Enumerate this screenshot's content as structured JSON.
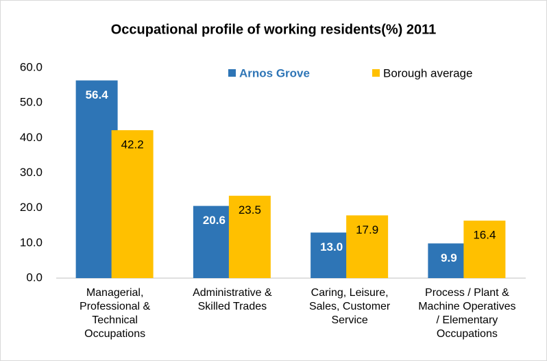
{
  "chart_data": {
    "type": "bar",
    "title": "Occupational profile of working residents(%) 2011",
    "categories": [
      "Managerial, Professional & Technical Occupations",
      "Administrative & Skilled Trades",
      "Caring, Leisure, Sales, Customer Service",
      "Process / Plant & Machine Operatives / Elementary Occupations"
    ],
    "series": [
      {
        "name": "Arnos Grove",
        "color": "#2e75b6",
        "values": [
          56.4,
          20.6,
          13.0,
          9.9
        ],
        "value_labels": [
          "56.4",
          "20.6",
          "13.0",
          "9.9"
        ]
      },
      {
        "name": "Borough average",
        "color": "#ffc000",
        "values": [
          42.2,
          23.5,
          17.9,
          16.4
        ],
        "value_labels": [
          "42.2",
          "23.5",
          "17.9",
          "16.4"
        ]
      }
    ],
    "ylim": [
      0,
      60
    ],
    "yticks": [
      {
        "value": 0,
        "label": "0.0"
      },
      {
        "value": 10,
        "label": "10.0"
      },
      {
        "value": 20,
        "label": "20.0"
      },
      {
        "value": 30,
        "label": "30.0"
      },
      {
        "value": 40,
        "label": "40.0"
      },
      {
        "value": 50,
        "label": "50.0"
      },
      {
        "value": 60,
        "label": "60.0"
      }
    ],
    "grid": false,
    "legend": "top"
  }
}
